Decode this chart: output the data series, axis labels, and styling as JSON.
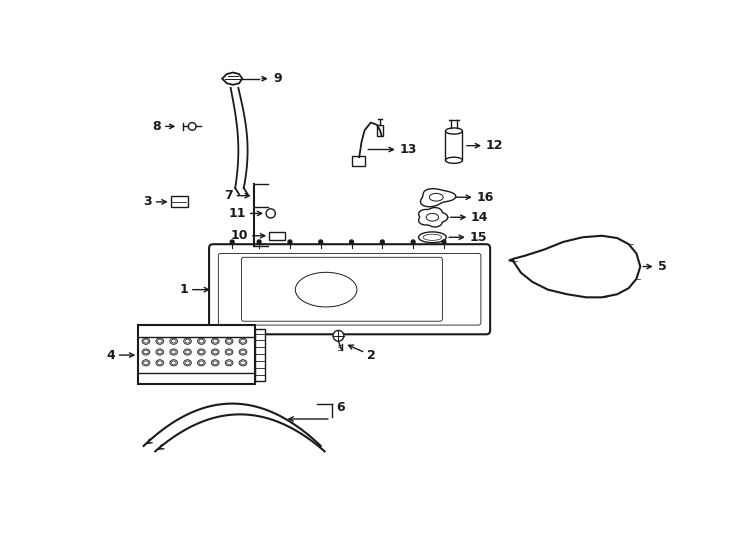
{
  "bg_color": "#ffffff",
  "line_color": "#1a1a1a",
  "lw": 1.0,
  "fig_width": 7.34,
  "fig_height": 5.4,
  "dpi": 100
}
